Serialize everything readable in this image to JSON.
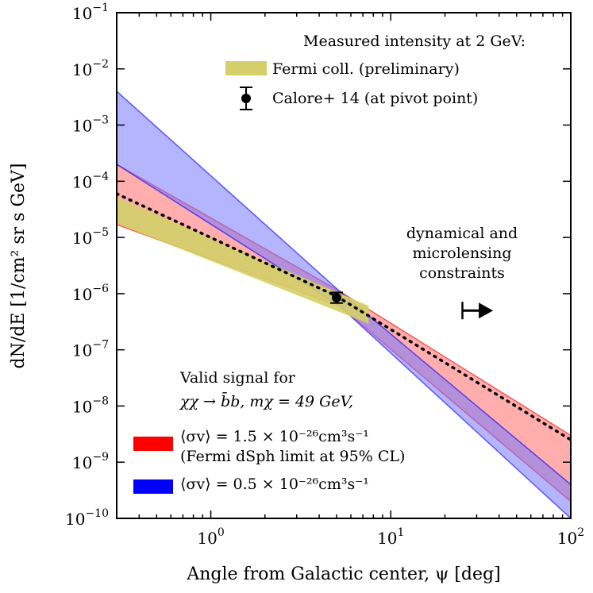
{
  "chart_data": {
    "type": "area",
    "x_scale": "log",
    "y_scale": "log",
    "xlim": [
      0.3,
      100
    ],
    "ylim": [
      1e-10,
      0.1
    ],
    "xlabel": "Angle from Galactic center, ψ [deg]",
    "ylabel": "dN/dE [1/cm² sr s GeV]",
    "x_ticks": [
      {
        "value": 1,
        "base": "10",
        "exp": "0"
      },
      {
        "value": 10,
        "base": "10",
        "exp": "1"
      },
      {
        "value": 100,
        "base": "10",
        "exp": "2"
      }
    ],
    "y_ticks": [
      {
        "value": 1e-10,
        "base": "10",
        "exp": "−10"
      },
      {
        "value": 1e-09,
        "base": "10",
        "exp": "−9"
      },
      {
        "value": 1e-08,
        "base": "10",
        "exp": "−8"
      },
      {
        "value": 1e-07,
        "base": "10",
        "exp": "−7"
      },
      {
        "value": 1e-06,
        "base": "10",
        "exp": "−6"
      },
      {
        "value": 1e-05,
        "base": "10",
        "exp": "−5"
      },
      {
        "value": 0.0001,
        "base": "10",
        "exp": "−4"
      },
      {
        "value": 0.001,
        "base": "10",
        "exp": "−3"
      },
      {
        "value": 0.01,
        "base": "10",
        "exp": "−2"
      },
      {
        "value": 0.1,
        "base": "10",
        "exp": "−1"
      }
    ],
    "series": [
      {
        "name": "⟨σv⟩ = 1.5 × 10⁻²⁶cm³s⁻¹",
        "kind": "band",
        "color": "#ff0000",
        "fill_color": "#ff9999",
        "opacity": 0.8,
        "x": [
          0.3,
          5.2,
          100
        ],
        "upper": [
          0.0002,
          1.1e-06,
          3e-09
        ],
        "lower": [
          1.7e-05,
          6e-07,
          2e-10
        ]
      },
      {
        "name": "⟨σv⟩ = 0.5 × 10⁻²⁶cm³s⁻¹",
        "kind": "band",
        "color": "#0000ff",
        "fill_color": "#7777ff",
        "opacity": 0.55,
        "x": [
          0.3,
          5.2,
          100
        ],
        "upper": [
          0.004,
          1.1e-06,
          4e-10
        ],
        "lower": [
          0.0002,
          6e-07,
          1e-10
        ]
      },
      {
        "name": "Fermi coll. (preliminary)",
        "kind": "band",
        "color": "#d4d45a",
        "fill_color": "#d4cf6a",
        "opacity": 0.9,
        "x": [
          0.3,
          7.5
        ],
        "upper": [
          5e-05,
          6e-07
        ],
        "lower": [
          1.8e-05,
          3e-07
        ]
      },
      {
        "name": "dotted best-fit line",
        "kind": "line",
        "style": "dotted",
        "color": "#000000",
        "x": [
          0.3,
          5.0,
          100
        ],
        "y": [
          6e-05,
          9e-07,
          2.5e-09
        ]
      },
      {
        "name": "Calore+ 14 (at pivot point)",
        "kind": "point",
        "color": "#000000",
        "x": 5.0,
        "y": 8.5e-07,
        "y_err_low": 6.8e-07,
        "y_err_high": 1.05e-06
      }
    ],
    "legend_top": {
      "title": "Measured intensity at 2 GeV:",
      "fermi_label": "Fermi coll. (preliminary)",
      "calore_label": "Calore+ 14 (at pivot point)",
      "fermi_color": "#d4cf6a",
      "placement": "top-right"
    },
    "legend_bottom": {
      "line1": "Valid signal for",
      "line2": "χχ → b̄b, mχ = 49 GeV,",
      "red_label": "⟨σv⟩ = 1.5 × 10⁻²⁶cm³s⁻¹",
      "red_note": "(Fermi dSph limit at 95% CL)",
      "blue_label": "⟨σv⟩ = 0.5 × 10⁻²⁶cm³s⁻¹",
      "red_color": "#ff0000",
      "blue_color": "#0000ff",
      "placement": "bottom-left"
    },
    "annotation": {
      "lines": [
        "dynamical and",
        "microlensing",
        "constraints"
      ],
      "arrow_start_x": 25,
      "arrow_end_x": 37,
      "arrow_y": 5e-07
    }
  }
}
